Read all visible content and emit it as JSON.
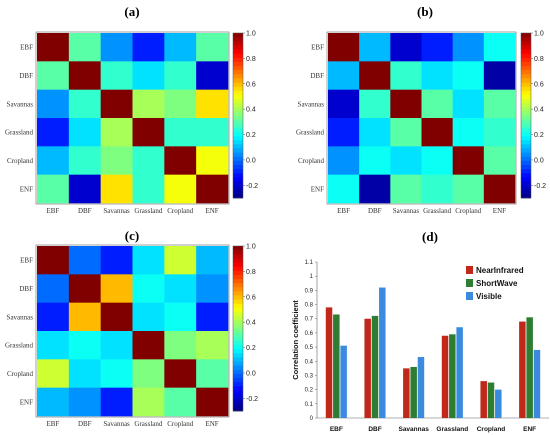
{
  "chart_data": [
    {
      "type": "heatmap",
      "panel_label": "(a)",
      "categories": [
        "EBF",
        "DBF",
        "Savannas",
        "Grassland",
        "Cropland",
        "ENF"
      ],
      "values": [
        [
          1.0,
          0.3,
          0.05,
          -0.1,
          0.1,
          0.3
        ],
        [
          0.3,
          1.0,
          0.25,
          0.15,
          0.25,
          -0.2
        ],
        [
          0.05,
          0.25,
          1.0,
          0.4,
          0.35,
          0.55
        ],
        [
          -0.1,
          0.15,
          0.4,
          1.0,
          0.25,
          0.25
        ],
        [
          0.1,
          0.25,
          0.35,
          0.25,
          1.0,
          0.5
        ],
        [
          0.3,
          -0.2,
          0.55,
          0.25,
          0.5,
          1.0
        ]
      ],
      "colorbar_ticks": [
        "1.0",
        "0.8",
        "0.6",
        "0.4",
        "0.2",
        "0.0",
        "-0.2"
      ],
      "clim": [
        -0.3,
        1.0
      ]
    },
    {
      "type": "heatmap",
      "panel_label": "(b)",
      "categories": [
        "EBF",
        "DBF",
        "Savannas",
        "Grassland",
        "Cropland",
        "ENF"
      ],
      "values": [
        [
          1.0,
          0.1,
          -0.2,
          -0.1,
          0.05,
          0.2
        ],
        [
          0.1,
          1.0,
          0.25,
          0.15,
          0.2,
          -0.25
        ],
        [
          -0.2,
          0.25,
          1.0,
          0.3,
          0.15,
          0.3
        ],
        [
          -0.1,
          0.15,
          0.3,
          1.0,
          0.2,
          0.25
        ],
        [
          0.05,
          0.2,
          0.15,
          0.2,
          1.0,
          0.3
        ],
        [
          0.2,
          -0.25,
          0.3,
          0.25,
          0.3,
          1.0
        ]
      ],
      "colorbar_ticks": [
        "1.0",
        "0.8",
        "0.6",
        "0.4",
        "0.2",
        "0.0",
        "-0.2"
      ],
      "clim": [
        -0.3,
        1.0
      ]
    },
    {
      "type": "heatmap",
      "panel_label": "(c)",
      "categories": [
        "EBF",
        "DBF",
        "Savannas",
        "Grassland",
        "Cropland",
        "ENF"
      ],
      "values": [
        [
          1.0,
          0.0,
          -0.1,
          0.15,
          0.45,
          0.1
        ],
        [
          0.0,
          1.0,
          0.6,
          0.2,
          0.15,
          0.05
        ],
        [
          -0.1,
          0.6,
          1.0,
          0.15,
          0.2,
          -0.1
        ],
        [
          0.15,
          0.2,
          0.15,
          1.0,
          0.35,
          0.4
        ],
        [
          0.45,
          0.15,
          0.2,
          0.35,
          1.0,
          0.3
        ],
        [
          0.1,
          0.05,
          -0.1,
          0.4,
          0.3,
          1.0
        ]
      ],
      "colorbar_ticks": [
        "1.0",
        "0.8",
        "0.6",
        "0.4",
        "0.2",
        "0.0",
        "-0.2"
      ],
      "clim": [
        -0.3,
        1.0
      ]
    },
    {
      "type": "bar",
      "panel_label": "(d)",
      "categories": [
        "EBF",
        "DBF",
        "Savannas",
        "Grassland",
        "Cropland",
        "ENF"
      ],
      "series": [
        {
          "name": "NearInfrared",
          "color": "#c0281a",
          "values": [
            0.78,
            0.7,
            0.35,
            0.58,
            0.26,
            0.68
          ]
        },
        {
          "name": "ShortWave",
          "color": "#2f7d32",
          "values": [
            0.73,
            0.72,
            0.36,
            0.59,
            0.25,
            0.71
          ]
        },
        {
          "name": "Visible",
          "color": "#3a8be0",
          "values": [
            0.51,
            0.92,
            0.43,
            0.64,
            0.2,
            0.48
          ]
        }
      ],
      "ylabel": "Correlation coefficient",
      "ylim": [
        0,
        1.1
      ],
      "yticks": [
        "0",
        "0.1",
        "0.2",
        "0.3",
        "0.4",
        "0.5",
        "0.6",
        "0.7",
        "0.8",
        "0.9",
        "1",
        "1.1"
      ]
    }
  ]
}
